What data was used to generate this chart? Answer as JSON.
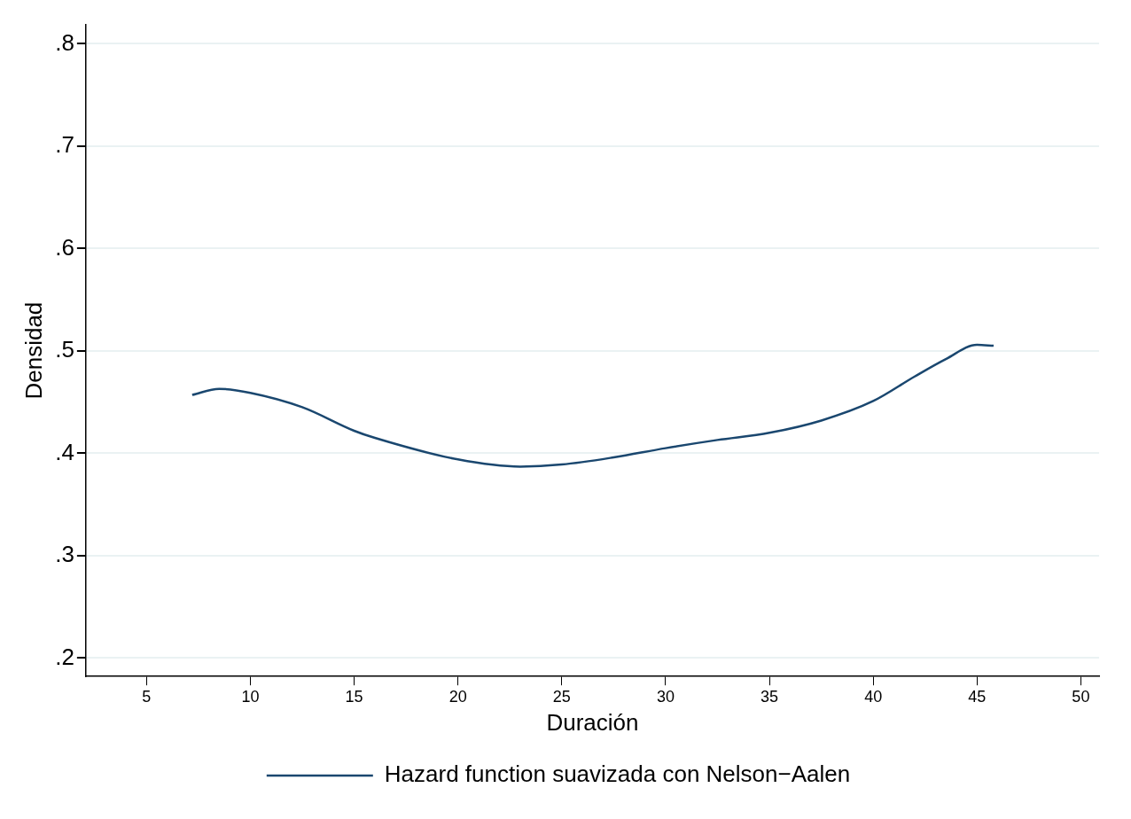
{
  "chart_data": {
    "type": "line",
    "xlabel": "Duración",
    "ylabel": "Densidad",
    "xlim": [
      2.08,
      50.88
    ],
    "xticks": [
      5,
      10,
      15,
      20,
      25,
      30,
      35,
      40,
      45,
      50
    ],
    "ylim": [
      0.182,
      0.8185
    ],
    "yticks": [
      {
        "value": 0.2,
        "label": ".2"
      },
      {
        "value": 0.3,
        "label": ".3"
      },
      {
        "value": 0.4,
        "label": ".4"
      },
      {
        "value": 0.5,
        "label": ".5"
      },
      {
        "value": 0.6,
        "label": ".6"
      },
      {
        "value": 0.7,
        "label": ".7"
      },
      {
        "value": 0.8,
        "label": ".8"
      }
    ],
    "grid": "y",
    "legend": "bottom",
    "marker": "none",
    "line_style": "solid",
    "series": [
      {
        "name": "Hazard function suavizada con Nelson−Aalen",
        "color": "#1a476f",
        "x": [
          7.2,
          8.5,
          10,
          12.5,
          15,
          16,
          20,
          23,
          25,
          27.5,
          30,
          32.5,
          35,
          37.5,
          40,
          42,
          43.5,
          45,
          45.8
        ],
        "values": [
          0.457,
          0.463,
          0.459,
          0.445,
          0.422,
          0.415,
          0.394,
          0.387,
          0.389,
          0.396,
          0.405,
          0.413,
          0.42,
          0.432,
          0.451,
          0.475,
          0.492,
          0.506,
          0.505
        ]
      }
    ]
  }
}
